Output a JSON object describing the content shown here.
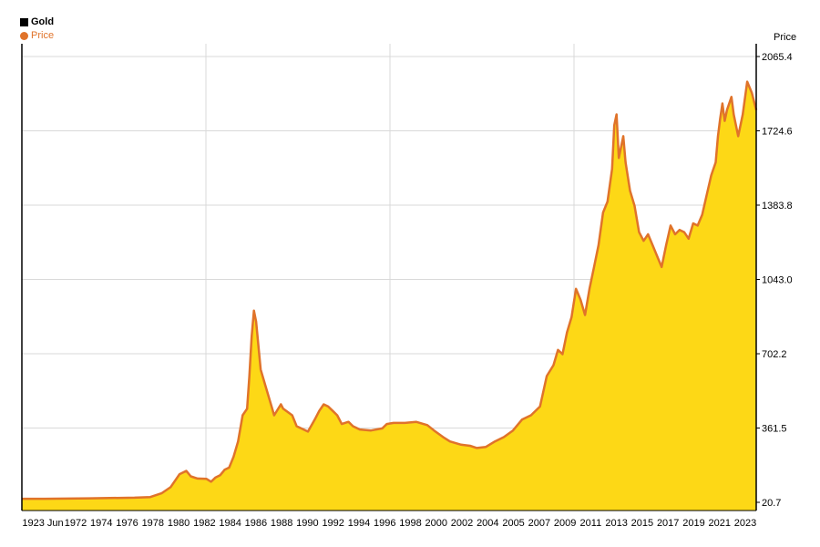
{
  "legend": {
    "title": "Gold",
    "series_label": "Price"
  },
  "colors": {
    "area_fill": "#fdd816",
    "line": "#e0732a",
    "grid": "#d9d9d9",
    "axis": "#000000",
    "legend_marker": "#000000"
  },
  "chart_data": {
    "type": "area",
    "title": "Gold",
    "ylabel": "Price",
    "xlabel": "",
    "ylim": [
      20.7,
      2065.4
    ],
    "y_ticks": [
      20.7,
      361.5,
      702.2,
      1043.0,
      1383.8,
      1724.6,
      2065.4
    ],
    "y_tick_labels": [
      "20.7",
      "361.5",
      "702.2",
      "1043.0",
      "1383.8",
      "1724.6",
      "2065.4"
    ],
    "x_tick_labels": [
      "1923 Jun",
      "1972",
      "1974",
      "1976",
      "1978",
      "1980",
      "1982",
      "1984",
      "1986",
      "1988",
      "1990",
      "1992",
      "1994",
      "1996",
      "1998",
      "2000",
      "2002",
      "2004",
      "2005",
      "2007",
      "2009",
      "2011",
      "2013",
      "2015",
      "2017",
      "2019",
      "2021",
      "2023"
    ],
    "grid": true,
    "legend_position": "top-left",
    "series": [
      {
        "name": "Price",
        "points": [
          [
            0,
            37
          ],
          [
            10,
            37
          ],
          [
            30,
            39
          ],
          [
            50,
            42
          ],
          [
            57,
            45
          ],
          [
            62,
            62
          ],
          [
            66,
            90
          ],
          [
            70,
            150
          ],
          [
            73,
            165
          ],
          [
            75,
            140
          ],
          [
            78,
            130
          ],
          [
            82,
            128
          ],
          [
            84,
            115
          ],
          [
            86,
            135
          ],
          [
            88,
            145
          ],
          [
            90,
            170
          ],
          [
            92,
            180
          ],
          [
            94,
            230
          ],
          [
            96,
            300
          ],
          [
            98,
            420
          ],
          [
            100,
            450
          ],
          [
            101,
            600
          ],
          [
            102,
            780
          ],
          [
            103,
            900
          ],
          [
            104,
            850
          ],
          [
            106,
            630
          ],
          [
            108,
            560
          ],
          [
            110,
            490
          ],
          [
            112,
            420
          ],
          [
            115,
            470
          ],
          [
            116,
            450
          ],
          [
            120,
            420
          ],
          [
            122,
            370
          ],
          [
            124,
            360
          ],
          [
            127,
            345
          ],
          [
            130,
            400
          ],
          [
            132,
            440
          ],
          [
            134,
            470
          ],
          [
            136,
            460
          ],
          [
            138,
            440
          ],
          [
            140,
            420
          ],
          [
            142,
            380
          ],
          [
            145,
            390
          ],
          [
            147,
            370
          ],
          [
            150,
            355
          ],
          [
            155,
            350
          ],
          [
            160,
            360
          ],
          [
            162,
            380
          ],
          [
            165,
            385
          ],
          [
            170,
            385
          ],
          [
            175,
            390
          ],
          [
            180,
            375
          ],
          [
            183,
            350
          ],
          [
            187,
            320
          ],
          [
            190,
            300
          ],
          [
            195,
            285
          ],
          [
            199,
            280
          ],
          [
            202,
            270
          ],
          [
            206,
            275
          ],
          [
            210,
            300
          ],
          [
            214,
            320
          ],
          [
            218,
            350
          ],
          [
            222,
            400
          ],
          [
            226,
            420
          ],
          [
            230,
            460
          ],
          [
            233,
            600
          ],
          [
            236,
            650
          ],
          [
            238,
            720
          ],
          [
            240,
            700
          ],
          [
            242,
            800
          ],
          [
            244,
            870
          ],
          [
            246,
            1000
          ],
          [
            248,
            950
          ],
          [
            250,
            880
          ],
          [
            252,
            1000
          ],
          [
            254,
            1100
          ],
          [
            256,
            1200
          ],
          [
            258,
            1350
          ],
          [
            260,
            1400
          ],
          [
            262,
            1550
          ],
          [
            263,
            1750
          ],
          [
            264,
            1800
          ],
          [
            265,
            1600
          ],
          [
            267,
            1700
          ],
          [
            268,
            1580
          ],
          [
            270,
            1450
          ],
          [
            272,
            1380
          ],
          [
            274,
            1260
          ],
          [
            276,
            1220
          ],
          [
            278,
            1250
          ],
          [
            280,
            1200
          ],
          [
            282,
            1150
          ],
          [
            284,
            1100
          ],
          [
            286,
            1200
          ],
          [
            288,
            1290
          ],
          [
            290,
            1250
          ],
          [
            292,
            1270
          ],
          [
            294,
            1260
          ],
          [
            296,
            1230
          ],
          [
            298,
            1300
          ],
          [
            300,
            1290
          ],
          [
            302,
            1340
          ],
          [
            304,
            1430
          ],
          [
            306,
            1520
          ],
          [
            308,
            1580
          ],
          [
            309,
            1700
          ],
          [
            310,
            1780
          ],
          [
            311,
            1850
          ],
          [
            312,
            1770
          ],
          [
            313,
            1820
          ],
          [
            315,
            1880
          ],
          [
            316,
            1800
          ],
          [
            318,
            1700
          ],
          [
            320,
            1800
          ],
          [
            322,
            1950
          ],
          [
            324,
            1900
          ],
          [
            326,
            1820
          ]
        ]
      }
    ]
  }
}
